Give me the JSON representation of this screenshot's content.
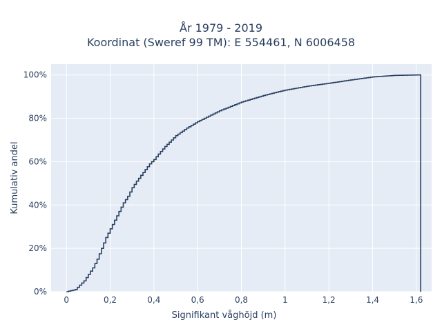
{
  "chart_data": {
    "type": "line",
    "title": "År 1979 - 2019",
    "subtitle": "Koordinat (Sweref 99 TM): E 554461, N 6006458",
    "xlabel": "Signifikant våghöjd (m)",
    "ylabel": "Kumulativ andel",
    "xlim": [
      -0.07,
      1.67
    ],
    "ylim": [
      0,
      1.05
    ],
    "x_ticks": [
      0,
      0.2,
      0.4,
      0.6,
      0.8,
      1.0,
      1.2,
      1.4,
      1.6
    ],
    "x_tick_labels": [
      "0",
      "0,2",
      "0,4",
      "0,6",
      "0,8",
      "1",
      "1,2",
      "1,4",
      "1,6"
    ],
    "y_ticks": [
      0,
      0.2,
      0.4,
      0.6,
      0.8,
      1.0
    ],
    "y_tick_labels": [
      "0%",
      "20%",
      "40%",
      "60%",
      "80%",
      "100%"
    ],
    "grid": true,
    "step": true,
    "line_color": "#2a3f5f",
    "plot_bg": "#e5ecf6",
    "series": [
      {
        "x": [
          0.0,
          0.04,
          0.06,
          0.08,
          0.1,
          0.12,
          0.14,
          0.16,
          0.18,
          0.2,
          0.22,
          0.24,
          0.26,
          0.28,
          0.3,
          0.32,
          0.35,
          0.38,
          0.4,
          0.42,
          0.45,
          0.5,
          0.55,
          0.6,
          0.65,
          0.7,
          0.75,
          0.8,
          0.85,
          0.9,
          0.95,
          1.0,
          1.1,
          1.2,
          1.3,
          1.4,
          1.5,
          1.6,
          1.62
        ],
        "y": [
          0.0,
          0.01,
          0.03,
          0.05,
          0.08,
          0.11,
          0.15,
          0.2,
          0.25,
          0.29,
          0.33,
          0.37,
          0.41,
          0.44,
          0.48,
          0.51,
          0.55,
          0.59,
          0.61,
          0.635,
          0.67,
          0.72,
          0.755,
          0.785,
          0.81,
          0.835,
          0.855,
          0.875,
          0.89,
          0.905,
          0.918,
          0.93,
          0.948,
          0.962,
          0.977,
          0.991,
          0.998,
          1.0,
          1.0
        ]
      }
    ]
  }
}
